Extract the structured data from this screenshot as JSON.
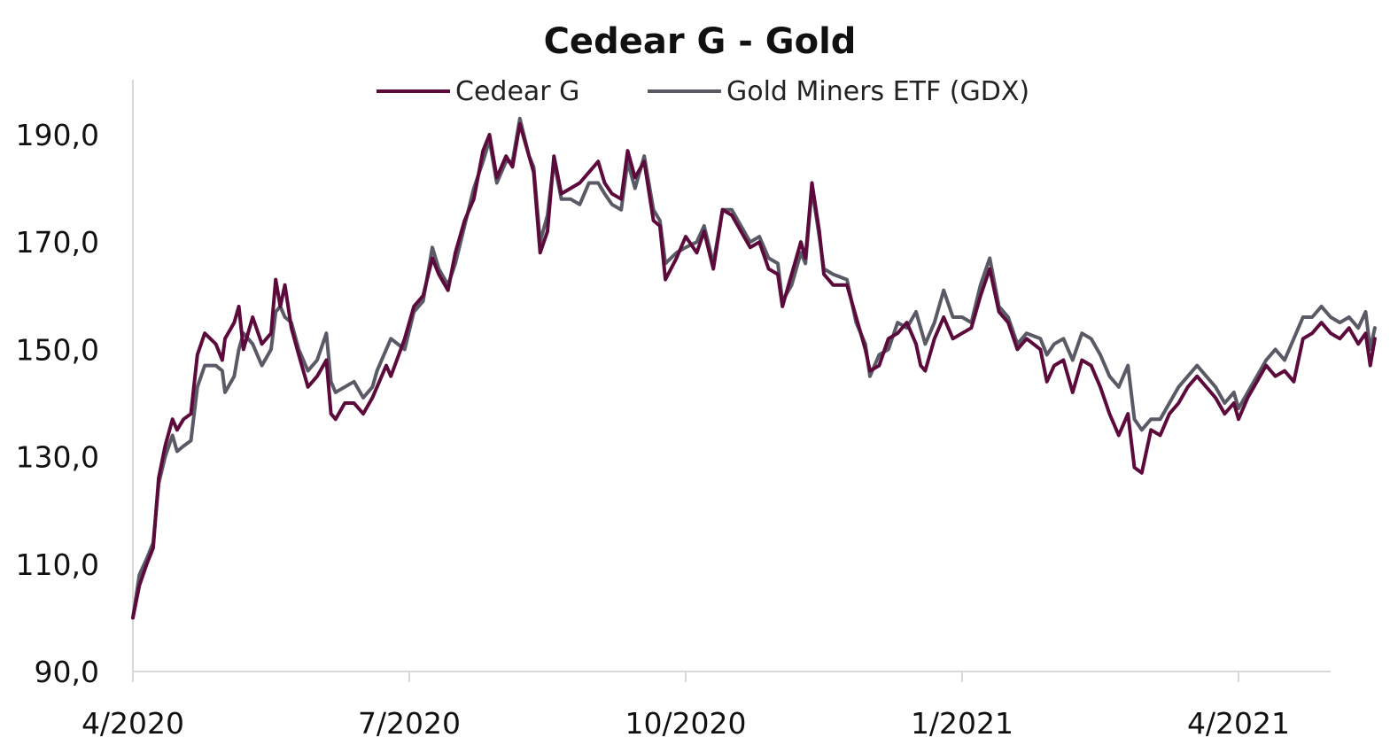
{
  "chart_data": {
    "type": "line",
    "title": "Cedear G - Gold",
    "xlabel": "",
    "ylabel": "",
    "x_tick_labels": [
      "4/2020",
      "7/2020",
      "10/2020",
      "1/2021",
      "4/2021"
    ],
    "x_tick_positions": [
      0,
      3,
      6,
      9,
      12
    ],
    "x_range": [
      0,
      13.0
    ],
    "y_tick_labels": [
      "90,0",
      "110,0",
      "130,0",
      "150,0",
      "170,0",
      "190,0"
    ],
    "y_ticks": [
      90,
      110,
      130,
      150,
      170,
      190
    ],
    "ylim": [
      90,
      200
    ],
    "grid": false,
    "legend_position": "top-center",
    "series": [
      {
        "name": "Cedear G",
        "color": "#5c0a3c",
        "points": [
          [
            0.0,
            100
          ],
          [
            0.07,
            106
          ],
          [
            0.15,
            110
          ],
          [
            0.22,
            113
          ],
          [
            0.28,
            126
          ],
          [
            0.35,
            132
          ],
          [
            0.43,
            137
          ],
          [
            0.48,
            135
          ],
          [
            0.55,
            137
          ],
          [
            0.63,
            138
          ],
          [
            0.7,
            149
          ],
          [
            0.78,
            153
          ],
          [
            0.9,
            151
          ],
          [
            0.97,
            148
          ],
          [
            1.0,
            152
          ],
          [
            1.1,
            155
          ],
          [
            1.15,
            158
          ],
          [
            1.2,
            150
          ],
          [
            1.3,
            156
          ],
          [
            1.4,
            151
          ],
          [
            1.5,
            153
          ],
          [
            1.55,
            163
          ],
          [
            1.6,
            158
          ],
          [
            1.65,
            162
          ],
          [
            1.72,
            154
          ],
          [
            1.8,
            149
          ],
          [
            1.9,
            143
          ],
          [
            2.0,
            145
          ],
          [
            2.1,
            148
          ],
          [
            2.15,
            138
          ],
          [
            2.2,
            137
          ],
          [
            2.3,
            140
          ],
          [
            2.4,
            140
          ],
          [
            2.5,
            138
          ],
          [
            2.6,
            141
          ],
          [
            2.65,
            143
          ],
          [
            2.75,
            147
          ],
          [
            2.8,
            145
          ],
          [
            2.95,
            152
          ],
          [
            3.05,
            158
          ],
          [
            3.15,
            160
          ],
          [
            3.25,
            167
          ],
          [
            3.32,
            164
          ],
          [
            3.42,
            161
          ],
          [
            3.5,
            168
          ],
          [
            3.6,
            174
          ],
          [
            3.7,
            178
          ],
          [
            3.8,
            187
          ],
          [
            3.87,
            190
          ],
          [
            3.95,
            182
          ],
          [
            4.05,
            186
          ],
          [
            4.12,
            184
          ],
          [
            4.2,
            192
          ],
          [
            4.3,
            186
          ],
          [
            4.35,
            183
          ],
          [
            4.42,
            168
          ],
          [
            4.5,
            172
          ],
          [
            4.57,
            186
          ],
          [
            4.65,
            179
          ],
          [
            4.75,
            180
          ],
          [
            4.85,
            181
          ],
          [
            4.95,
            183
          ],
          [
            5.05,
            185
          ],
          [
            5.12,
            181
          ],
          [
            5.2,
            179
          ],
          [
            5.3,
            178
          ],
          [
            5.37,
            187
          ],
          [
            5.45,
            182
          ],
          [
            5.55,
            185
          ],
          [
            5.65,
            174
          ],
          [
            5.72,
            173
          ],
          [
            5.78,
            163
          ],
          [
            5.9,
            167
          ],
          [
            6.0,
            171
          ],
          [
            6.12,
            168
          ],
          [
            6.2,
            172
          ],
          [
            6.3,
            165
          ],
          [
            6.4,
            176
          ],
          [
            6.5,
            175
          ],
          [
            6.6,
            172
          ],
          [
            6.7,
            169
          ],
          [
            6.8,
            170
          ],
          [
            6.9,
            165
          ],
          [
            7.0,
            164
          ],
          [
            7.05,
            158
          ],
          [
            7.15,
            164
          ],
          [
            7.25,
            170
          ],
          [
            7.3,
            167
          ],
          [
            7.37,
            181
          ],
          [
            7.45,
            172
          ],
          [
            7.5,
            164
          ],
          [
            7.6,
            162
          ],
          [
            7.75,
            162
          ],
          [
            7.85,
            156
          ],
          [
            7.95,
            150
          ],
          [
            8.0,
            146
          ],
          [
            8.1,
            147
          ],
          [
            8.2,
            152
          ],
          [
            8.3,
            153
          ],
          [
            8.4,
            155
          ],
          [
            8.5,
            151
          ],
          [
            8.55,
            147
          ],
          [
            8.6,
            146
          ],
          [
            8.7,
            152
          ],
          [
            8.8,
            156
          ],
          [
            8.9,
            152
          ],
          [
            9.0,
            153
          ],
          [
            9.1,
            154
          ],
          [
            9.2,
            160
          ],
          [
            9.3,
            165
          ],
          [
            9.4,
            157
          ],
          [
            9.5,
            155
          ],
          [
            9.6,
            150
          ],
          [
            9.7,
            152
          ],
          [
            9.85,
            150
          ],
          [
            9.92,
            144
          ],
          [
            10.0,
            147
          ],
          [
            10.1,
            148
          ],
          [
            10.2,
            142
          ],
          [
            10.3,
            148
          ],
          [
            10.4,
            147
          ],
          [
            10.5,
            143
          ],
          [
            10.6,
            138
          ],
          [
            10.7,
            134
          ],
          [
            10.8,
            138
          ],
          [
            10.87,
            128
          ],
          [
            10.95,
            127
          ],
          [
            11.05,
            135
          ],
          [
            11.15,
            134
          ],
          [
            11.25,
            138
          ],
          [
            11.35,
            140
          ],
          [
            11.45,
            143
          ],
          [
            11.55,
            145
          ],
          [
            11.65,
            143
          ],
          [
            11.75,
            141
          ],
          [
            11.85,
            138
          ],
          [
            11.95,
            140
          ],
          [
            12.0,
            137
          ],
          [
            12.1,
            141
          ],
          [
            12.2,
            144
          ],
          [
            12.3,
            147
          ],
          [
            12.4,
            145
          ],
          [
            12.5,
            146
          ],
          [
            12.6,
            144
          ],
          [
            12.7,
            152
          ],
          [
            12.8,
            153
          ],
          [
            12.9,
            155
          ],
          [
            13.0,
            153
          ],
          [
            13.1,
            152
          ],
          [
            13.2,
            154
          ],
          [
            13.3,
            151
          ],
          [
            13.38,
            153
          ],
          [
            13.43,
            147
          ],
          [
            13.48,
            152
          ]
        ]
      },
      {
        "name": "Gold Miners ETF (GDX)",
        "color": "#5a5a66",
        "points": [
          [
            0.0,
            100
          ],
          [
            0.07,
            108
          ],
          [
            0.15,
            111
          ],
          [
            0.22,
            114
          ],
          [
            0.28,
            125
          ],
          [
            0.35,
            130
          ],
          [
            0.43,
            134
          ],
          [
            0.48,
            131
          ],
          [
            0.55,
            132
          ],
          [
            0.63,
            133
          ],
          [
            0.7,
            143
          ],
          [
            0.78,
            147
          ],
          [
            0.9,
            147
          ],
          [
            0.97,
            146
          ],
          [
            1.0,
            142
          ],
          [
            1.1,
            145
          ],
          [
            1.15,
            150
          ],
          [
            1.2,
            153
          ],
          [
            1.3,
            151
          ],
          [
            1.4,
            147
          ],
          [
            1.5,
            150
          ],
          [
            1.55,
            157
          ],
          [
            1.6,
            158
          ],
          [
            1.65,
            156
          ],
          [
            1.72,
            155
          ],
          [
            1.8,
            150
          ],
          [
            1.9,
            146
          ],
          [
            2.0,
            148
          ],
          [
            2.1,
            153
          ],
          [
            2.15,
            144
          ],
          [
            2.2,
            142
          ],
          [
            2.3,
            143
          ],
          [
            2.4,
            144
          ],
          [
            2.5,
            141
          ],
          [
            2.6,
            143
          ],
          [
            2.65,
            146
          ],
          [
            2.75,
            150
          ],
          [
            2.8,
            152
          ],
          [
            2.95,
            150
          ],
          [
            3.05,
            157
          ],
          [
            3.15,
            159
          ],
          [
            3.25,
            169
          ],
          [
            3.32,
            165
          ],
          [
            3.42,
            162
          ],
          [
            3.5,
            166
          ],
          [
            3.6,
            173
          ],
          [
            3.7,
            180
          ],
          [
            3.8,
            185
          ],
          [
            3.87,
            189
          ],
          [
            3.95,
            181
          ],
          [
            4.05,
            185
          ],
          [
            4.12,
            185
          ],
          [
            4.2,
            193
          ],
          [
            4.3,
            186
          ],
          [
            4.35,
            184
          ],
          [
            4.42,
            170
          ],
          [
            4.5,
            175
          ],
          [
            4.57,
            185
          ],
          [
            4.65,
            178
          ],
          [
            4.75,
            178
          ],
          [
            4.85,
            177
          ],
          [
            4.95,
            181
          ],
          [
            5.05,
            181
          ],
          [
            5.12,
            179
          ],
          [
            5.2,
            177
          ],
          [
            5.3,
            176
          ],
          [
            5.37,
            185
          ],
          [
            5.45,
            180
          ],
          [
            5.55,
            186
          ],
          [
            5.65,
            176
          ],
          [
            5.72,
            174
          ],
          [
            5.78,
            166
          ],
          [
            5.9,
            168
          ],
          [
            6.0,
            169
          ],
          [
            6.12,
            170
          ],
          [
            6.2,
            173
          ],
          [
            6.3,
            166
          ],
          [
            6.4,
            176
          ],
          [
            6.5,
            176
          ],
          [
            6.6,
            173
          ],
          [
            6.7,
            170
          ],
          [
            6.8,
            171
          ],
          [
            6.9,
            167
          ],
          [
            7.0,
            166
          ],
          [
            7.05,
            159
          ],
          [
            7.15,
            162
          ],
          [
            7.25,
            168
          ],
          [
            7.3,
            166
          ],
          [
            7.37,
            180
          ],
          [
            7.45,
            171
          ],
          [
            7.5,
            165
          ],
          [
            7.6,
            164
          ],
          [
            7.75,
            163
          ],
          [
            7.85,
            155
          ],
          [
            7.95,
            151
          ],
          [
            8.0,
            145
          ],
          [
            8.1,
            149
          ],
          [
            8.2,
            150
          ],
          [
            8.3,
            155
          ],
          [
            8.4,
            154
          ],
          [
            8.5,
            157
          ],
          [
            8.55,
            154
          ],
          [
            8.6,
            151
          ],
          [
            8.7,
            155
          ],
          [
            8.8,
            161
          ],
          [
            8.9,
            156
          ],
          [
            9.0,
            156
          ],
          [
            9.1,
            155
          ],
          [
            9.2,
            162
          ],
          [
            9.3,
            167
          ],
          [
            9.4,
            158
          ],
          [
            9.5,
            156
          ],
          [
            9.6,
            151
          ],
          [
            9.7,
            153
          ],
          [
            9.85,
            152
          ],
          [
            9.92,
            149
          ],
          [
            10.0,
            151
          ],
          [
            10.1,
            152
          ],
          [
            10.2,
            148
          ],
          [
            10.3,
            153
          ],
          [
            10.4,
            152
          ],
          [
            10.5,
            149
          ],
          [
            10.6,
            145
          ],
          [
            10.7,
            143
          ],
          [
            10.8,
            147
          ],
          [
            10.87,
            137
          ],
          [
            10.95,
            135
          ],
          [
            11.05,
            137
          ],
          [
            11.15,
            137
          ],
          [
            11.25,
            140
          ],
          [
            11.35,
            143
          ],
          [
            11.45,
            145
          ],
          [
            11.55,
            147
          ],
          [
            11.65,
            145
          ],
          [
            11.75,
            143
          ],
          [
            11.85,
            140
          ],
          [
            11.95,
            142
          ],
          [
            12.0,
            139
          ],
          [
            12.1,
            142
          ],
          [
            12.2,
            145
          ],
          [
            12.3,
            148
          ],
          [
            12.4,
            150
          ],
          [
            12.5,
            148
          ],
          [
            12.6,
            152
          ],
          [
            12.7,
            156
          ],
          [
            12.8,
            156
          ],
          [
            12.9,
            158
          ],
          [
            13.0,
            156
          ],
          [
            13.1,
            155
          ],
          [
            13.2,
            156
          ],
          [
            13.3,
            154
          ],
          [
            13.38,
            157
          ],
          [
            13.43,
            150
          ],
          [
            13.48,
            154
          ]
        ]
      }
    ]
  }
}
